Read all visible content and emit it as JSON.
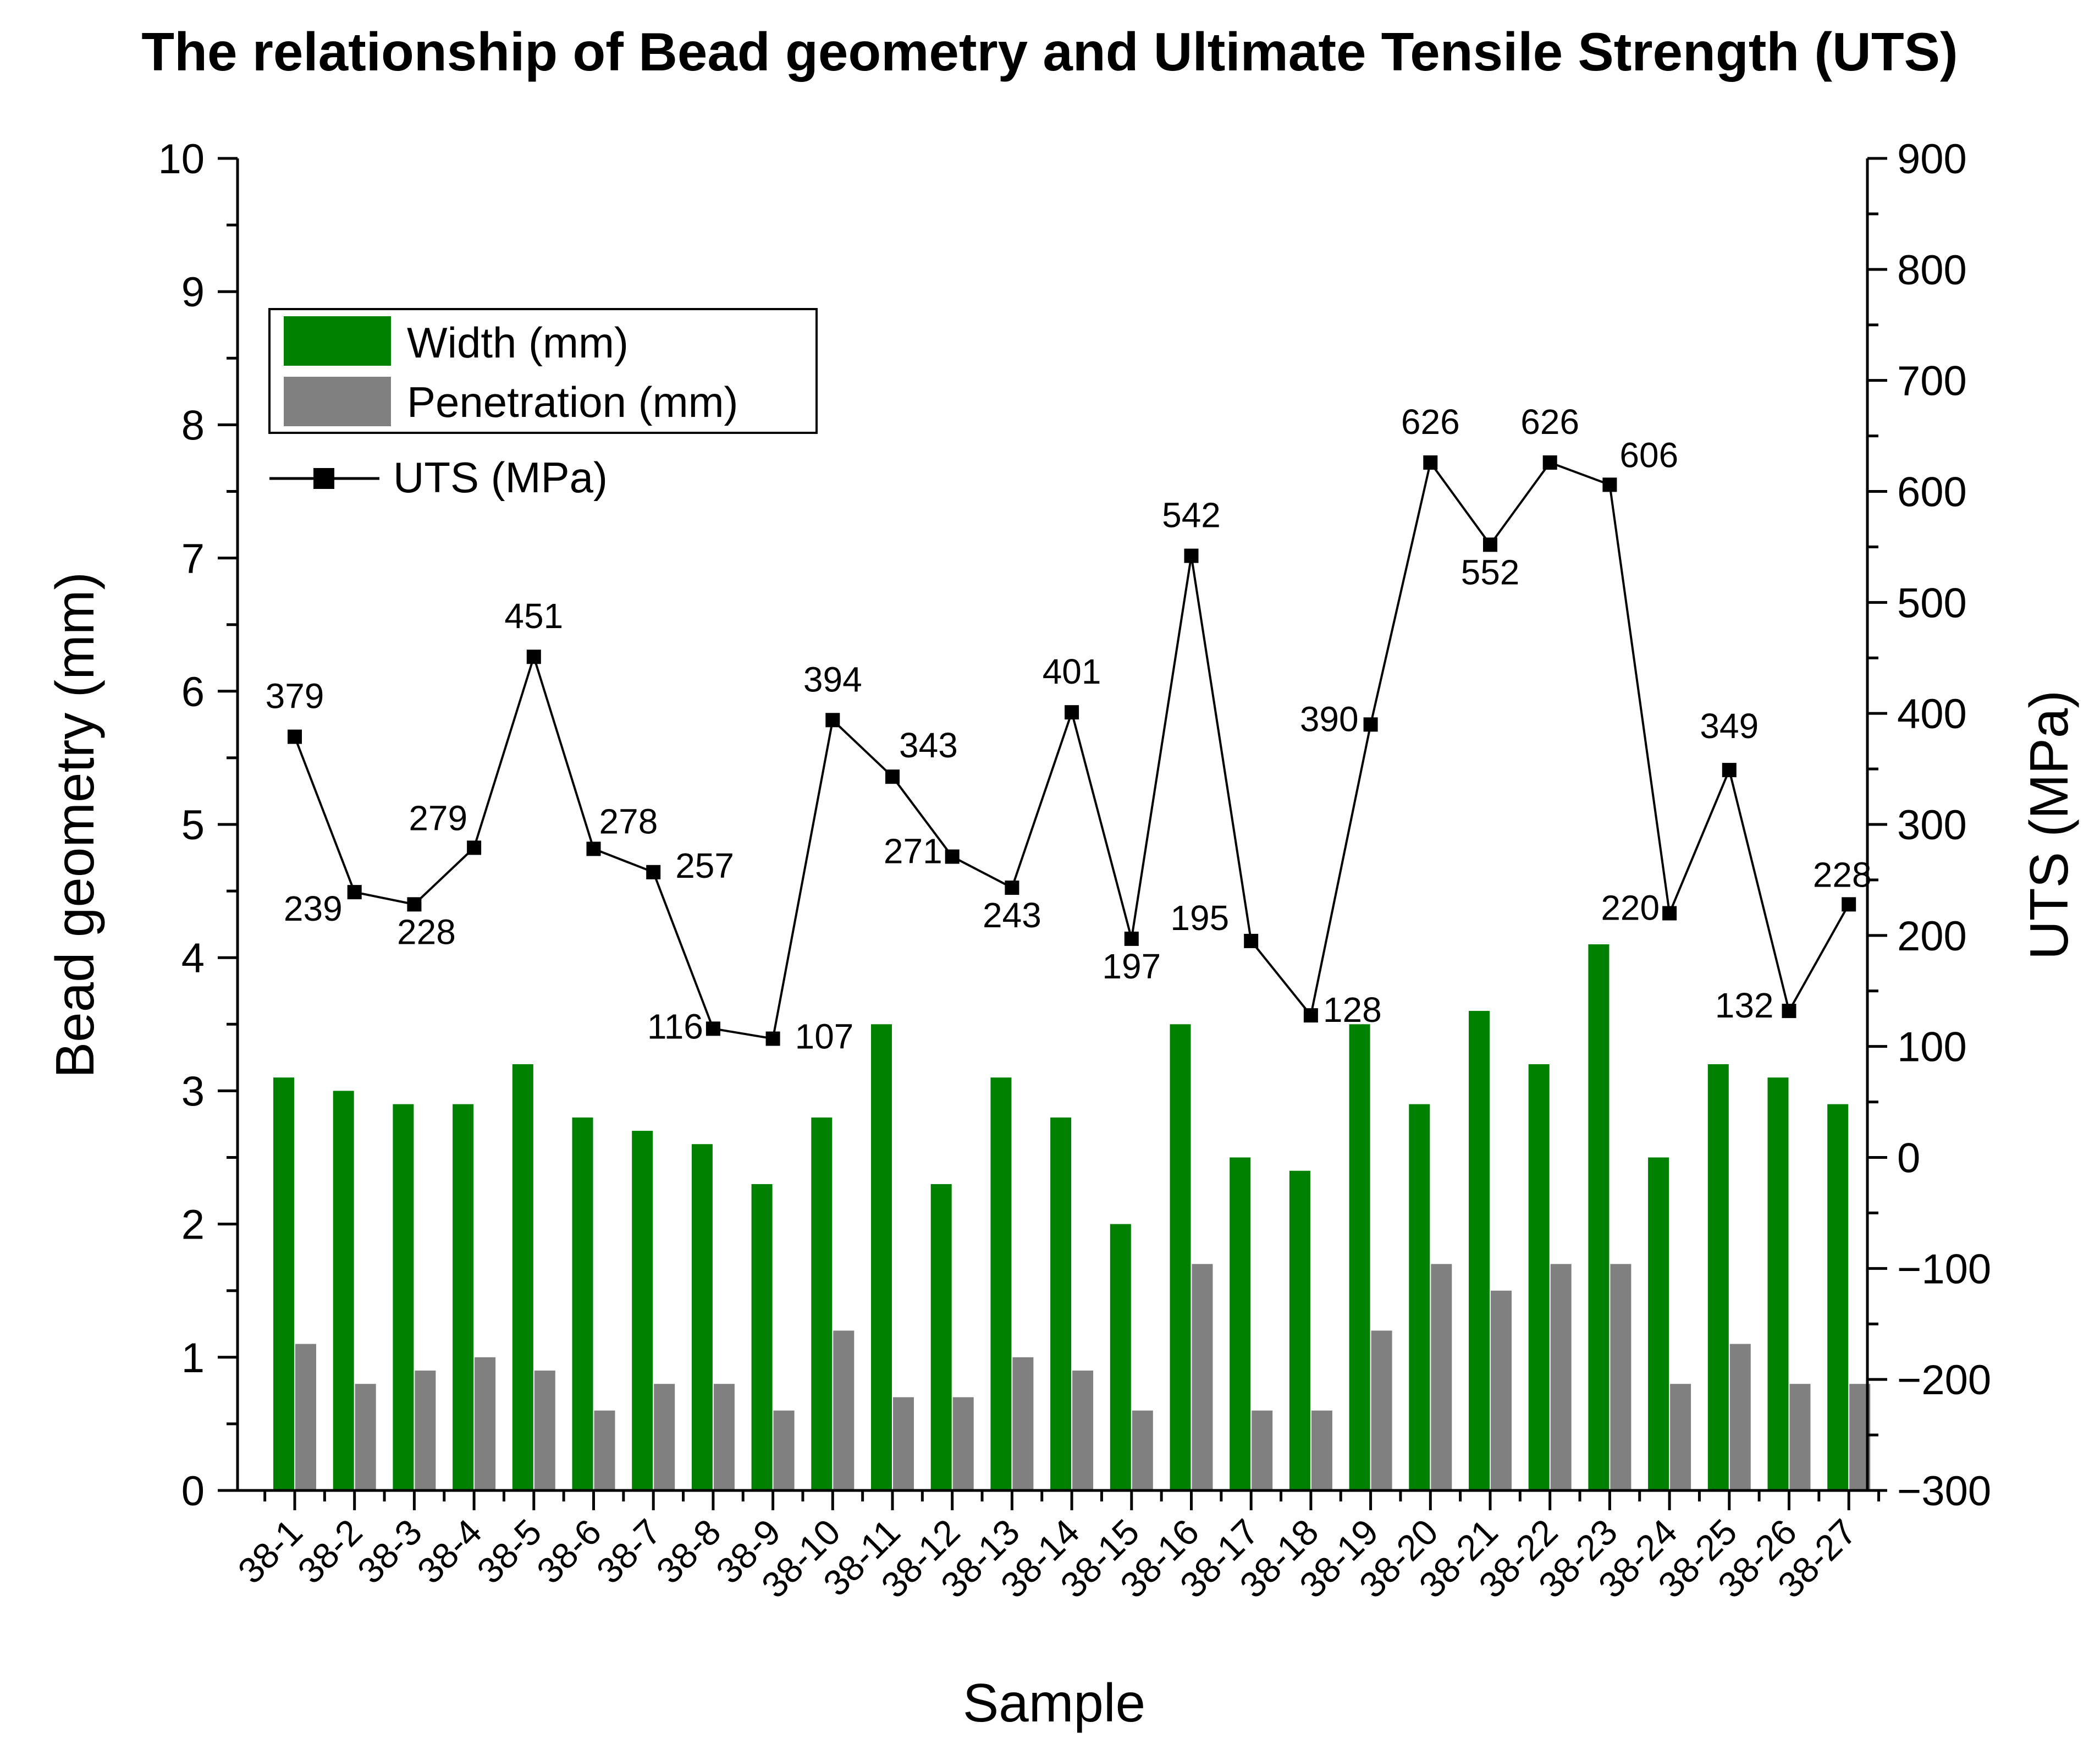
{
  "chart_data": {
    "type": "bar",
    "title": "The relationship of Bead geometry and Ultimate Tensile Strength (UTS)",
    "xlabel": "Sample",
    "ylabel": "Bead geometry (mm)",
    "y2label": "UTS (MPa)",
    "ylim": [
      0,
      10
    ],
    "yticks": [
      "0",
      "1",
      "2",
      "3",
      "4",
      "5",
      "6",
      "7",
      "8",
      "9",
      "10"
    ],
    "y2lim": [
      -300,
      900
    ],
    "y2ticks": [
      "−300",
      "−200",
      "−100",
      "0",
      "100",
      "200",
      "300",
      "400",
      "500",
      "600",
      "700",
      "800",
      "900"
    ],
    "grid": false,
    "legend_position": "top-left",
    "categories": [
      "38-1",
      "38-2",
      "38-3",
      "38-4",
      "38-5",
      "38-6",
      "38-7",
      "38-8",
      "38-9",
      "38-10",
      "38-11",
      "38-12",
      "38-13",
      "38-14",
      "38-15",
      "38-16",
      "38-17",
      "38-18",
      "38-19",
      "38-20",
      "38-21",
      "38-22",
      "38-23",
      "38-24",
      "38-25",
      "38-26",
      "38-27"
    ],
    "series": [
      {
        "name": "Width (mm)",
        "type": "bar",
        "axis": "left",
        "color": "#008000",
        "values": [
          3.1,
          3.0,
          2.9,
          2.9,
          3.2,
          2.8,
          2.7,
          2.6,
          2.3,
          2.8,
          3.5,
          2.3,
          3.1,
          2.8,
          2.0,
          3.5,
          2.5,
          2.4,
          3.5,
          2.9,
          3.6,
          3.2,
          4.1,
          2.5,
          3.2,
          3.1,
          2.9
        ]
      },
      {
        "name": "Penetration (mm)",
        "type": "bar",
        "axis": "left",
        "color": "#808080",
        "values": [
          1.1,
          0.8,
          0.9,
          1.0,
          0.9,
          0.6,
          0.8,
          0.8,
          0.6,
          1.2,
          0.7,
          0.7,
          1.0,
          0.9,
          0.6,
          1.7,
          0.6,
          0.6,
          1.2,
          1.7,
          1.5,
          1.7,
          1.7,
          0.8,
          1.1,
          0.8,
          0.8
        ]
      },
      {
        "name": "UTS (MPa)",
        "type": "line",
        "axis": "right",
        "color": "#000000",
        "marker": "square",
        "values": [
          379,
          239,
          228,
          279,
          451,
          278,
          257,
          116,
          107,
          394,
          343,
          271,
          243,
          401,
          197,
          542,
          195,
          128,
          390,
          626,
          552,
          626,
          606,
          220,
          349,
          132,
          228
        ],
        "labels": [
          "379",
          "239",
          "228",
          "279",
          "451",
          "278",
          "257",
          "116",
          "107",
          "394",
          "343",
          "271",
          "243",
          "401",
          "197",
          "542",
          "195",
          "128",
          "390",
          "626",
          "552",
          "626",
          "606",
          "220",
          "349",
          "132",
          "228"
        ]
      }
    ]
  }
}
